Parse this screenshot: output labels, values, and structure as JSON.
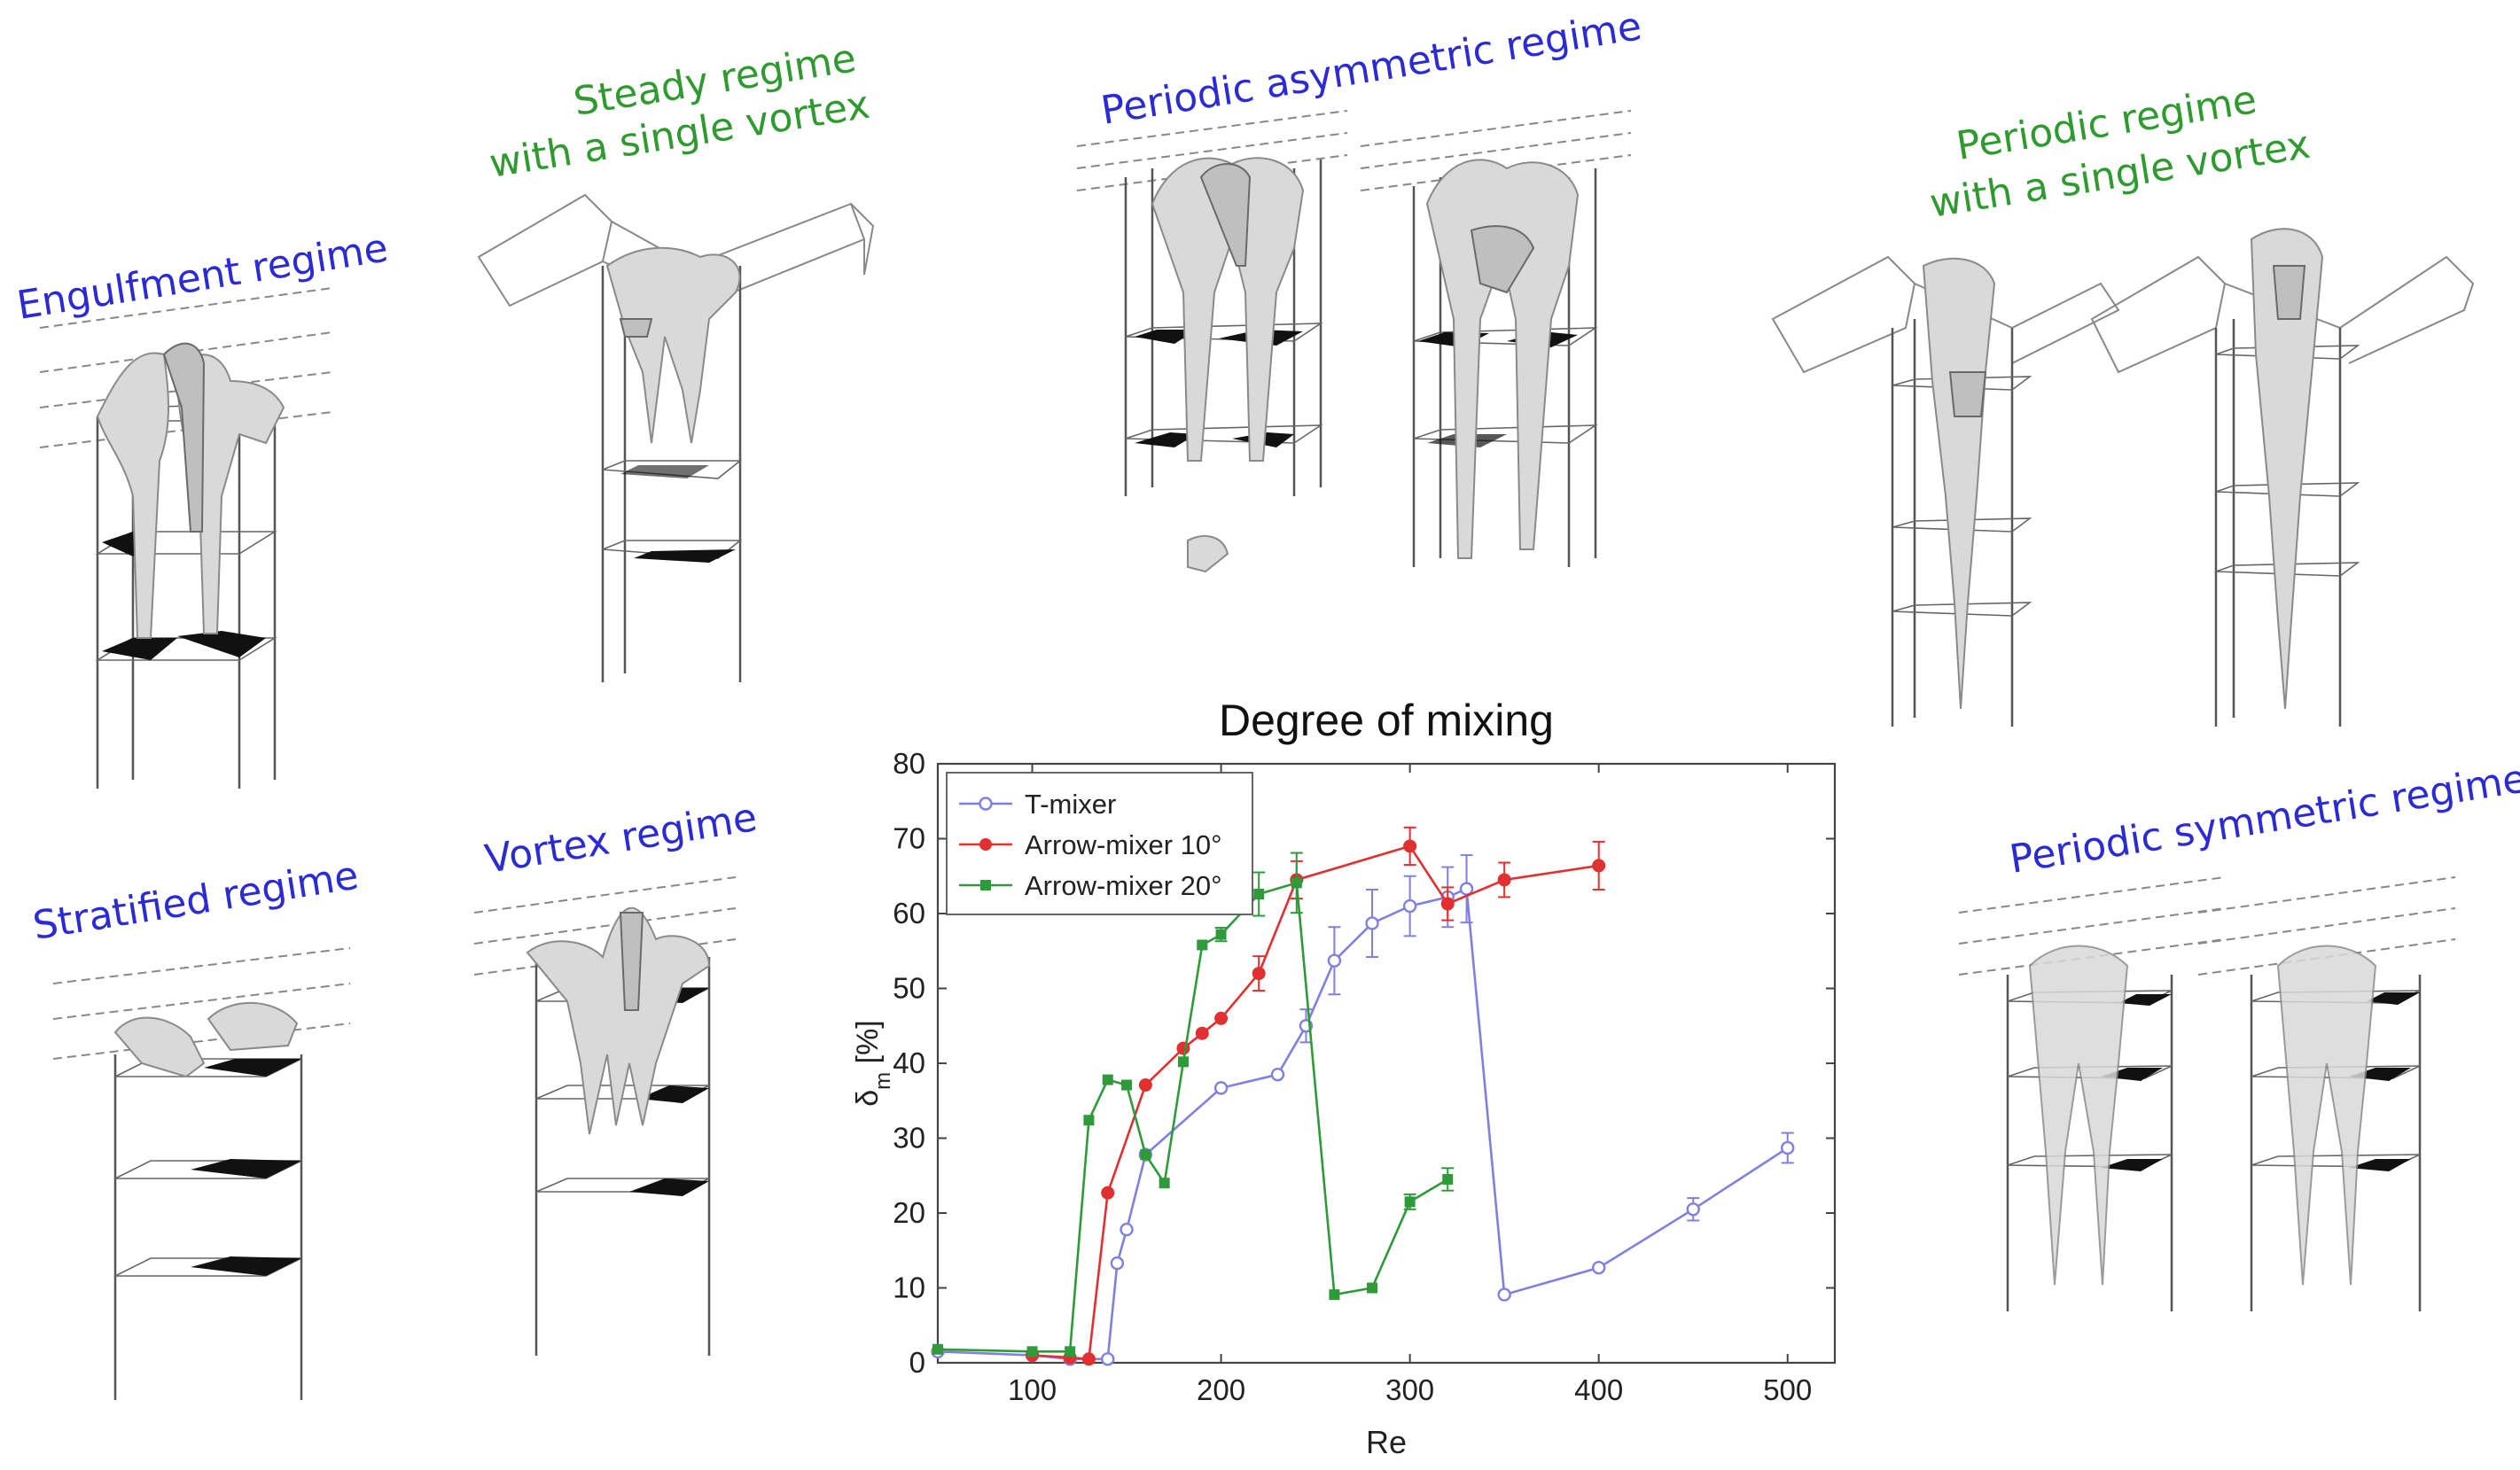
{
  "regime_labels": {
    "engulfment": "Engulfment regime",
    "steady_line1": "Steady regime",
    "steady_line2": "with a single vortex",
    "periodic_asymmetric": "Periodic asymmetric regime",
    "periodic_single_line1": "Periodic regime",
    "periodic_single_line2": "with a single vortex",
    "stratified": "Stratified regime",
    "vortex": "Vortex regime",
    "periodic_symmetric": "Periodic symmetric regime"
  },
  "colors": {
    "label_blue": "#2b2bd6",
    "label_green": "#2f9a2f",
    "t_mixer": "#8080e0",
    "arrow10": "#e03030",
    "arrow20": "#2e9a3a"
  },
  "chart_data": {
    "type": "line",
    "title": "Degree of mixing",
    "xlabel": "Re",
    "ylabel_main": "δ",
    "ylabel_sub": "m",
    "ylabel_unit": " [%]",
    "xlim": [
      50,
      525
    ],
    "ylim": [
      0,
      80
    ],
    "xticks": [
      100,
      200,
      300,
      400,
      500
    ],
    "yticks": [
      0,
      10,
      20,
      30,
      40,
      50,
      60,
      70,
      80
    ],
    "grid": false,
    "legend_position": "top-left",
    "series": [
      {
        "name": "T-mixer",
        "marker": "open-circle",
        "color": "#8080e0",
        "x": [
          50,
          100,
          120,
          140,
          145,
          150,
          160,
          200,
          230,
          245,
          260,
          280,
          300,
          320,
          330,
          350,
          400,
          450,
          500
        ],
        "y": [
          1.5,
          1,
          0.5,
          0.5,
          13.3,
          17.8,
          27.8,
          36.7,
          38.5,
          45,
          53.7,
          58.7,
          61,
          62.2,
          63.3,
          9.1,
          12.7,
          20.5,
          28.7
        ],
        "err": [
          0,
          0,
          0,
          0,
          0,
          0,
          0,
          0,
          0,
          2.2,
          4.5,
          4.5,
          4,
          4,
          4.5,
          0,
          0,
          1.5,
          2
        ]
      },
      {
        "name": "Arrow-mixer 10°",
        "marker": "filled-circle",
        "color": "#e03030",
        "x": [
          100,
          120,
          130,
          140,
          160,
          180,
          190,
          200,
          220,
          240,
          300,
          320,
          350,
          400
        ],
        "y": [
          1,
          0.7,
          0.5,
          22.7,
          37.1,
          42,
          44,
          46,
          52,
          64.5,
          69,
          61.3,
          64.5,
          66.4
        ],
        "err": [
          0,
          0,
          0,
          0,
          0,
          0,
          0,
          0,
          2.3,
          2.5,
          2.5,
          2.2,
          2.3,
          3.2
        ]
      },
      {
        "name": "Arrow-mixer 20°",
        "marker": "filled-square",
        "color": "#2e9a3a",
        "x": [
          50,
          100,
          120,
          130,
          140,
          150,
          160,
          170,
          180,
          190,
          200,
          220,
          240,
          260,
          280,
          300,
          320
        ],
        "y": [
          1.8,
          1.5,
          1.5,
          32.4,
          37.8,
          37.1,
          27.8,
          24,
          40.2,
          55.8,
          57.2,
          62.6,
          64.1,
          9.1,
          10,
          21.5,
          24.5
        ],
        "err": [
          0,
          0,
          0,
          0,
          0,
          0,
          0,
          0,
          0,
          0,
          0.9,
          2.9,
          4,
          0,
          0,
          1,
          1.5
        ]
      }
    ]
  }
}
